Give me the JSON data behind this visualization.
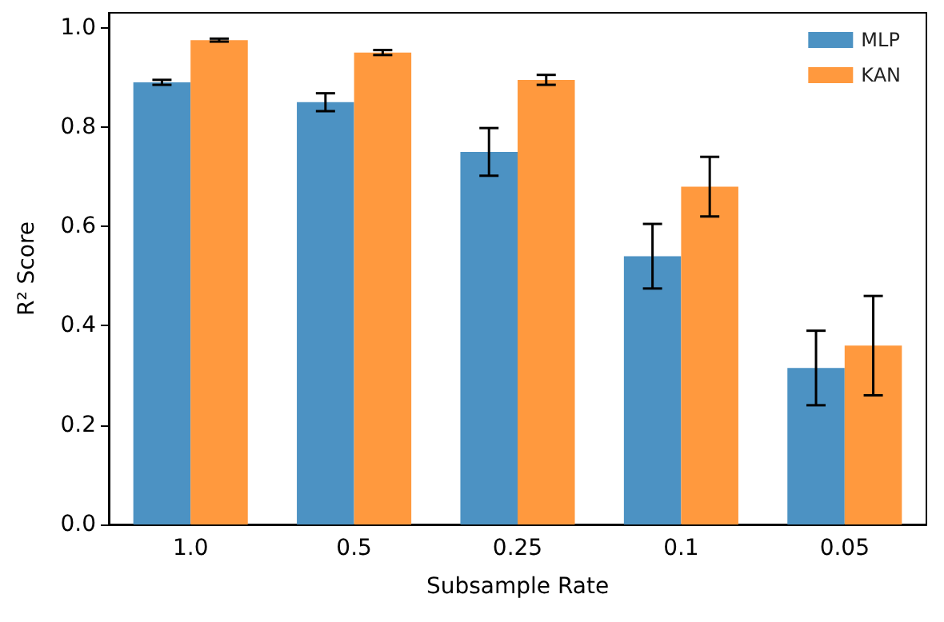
{
  "chart_data": {
    "type": "bar",
    "xlabel": "Subsample Rate",
    "ylabel": "R² Score",
    "categories": [
      "1.0",
      "0.5",
      "0.25",
      "0.1",
      "0.05"
    ],
    "series": [
      {
        "name": "MLP",
        "color": "#4c92c3",
        "values": [
          0.89,
          0.85,
          0.75,
          0.54,
          0.315
        ],
        "errors": [
          0.005,
          0.018,
          0.048,
          0.065,
          0.075
        ]
      },
      {
        "name": "KAN",
        "color": "#ff993e",
        "values": [
          0.975,
          0.95,
          0.895,
          0.68,
          0.36
        ],
        "errors": [
          0.003,
          0.005,
          0.01,
          0.06,
          0.1
        ]
      }
    ],
    "ylim": [
      0,
      1.03
    ],
    "yticks": [
      {
        "value": 0,
        "label": "0.0"
      },
      {
        "value": 0.2,
        "label": "0.2"
      },
      {
        "value": 0.4,
        "label": "0.4"
      },
      {
        "value": 0.6,
        "label": "0.6"
      },
      {
        "value": 0.8,
        "label": "0.8"
      },
      {
        "value": 1,
        "label": "1.0"
      }
    ],
    "grid": false,
    "legend": "top right"
  }
}
